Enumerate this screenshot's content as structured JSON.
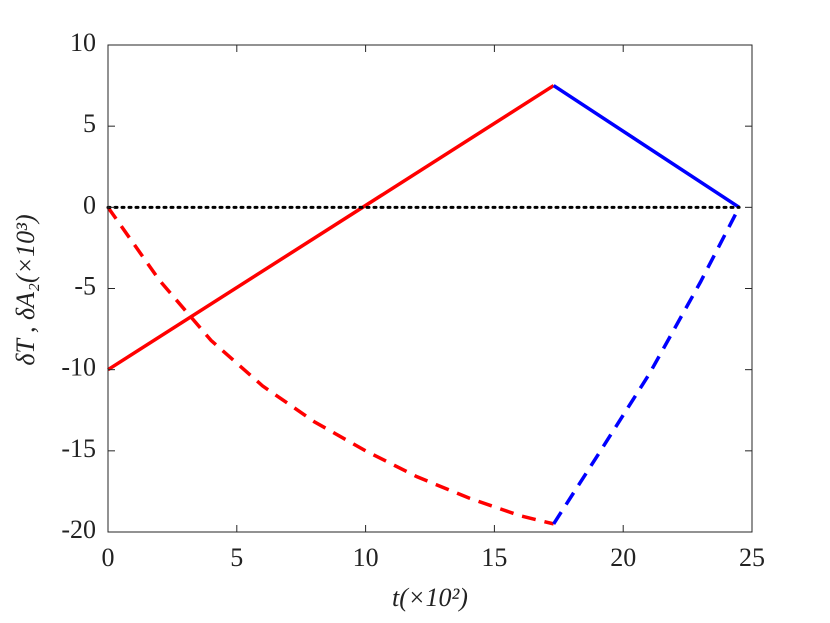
{
  "chart_data": {
    "type": "line",
    "x_label": "t(×10²)",
    "y_label": "δT , δA₂(×10³)",
    "xlim": [
      0,
      25
    ],
    "xticks": [
      0,
      5,
      10,
      15,
      20,
      25
    ],
    "ylim": [
      -20,
      10
    ],
    "yticks": [
      -20,
      -15,
      -10,
      -5,
      0,
      5,
      10
    ],
    "grid": false,
    "series": [
      {
        "color": "#ff0000",
        "style": "solid",
        "x": [
          0,
          17.3
        ],
        "values": [
          -10,
          7.5
        ]
      },
      {
        "color": "#0000ff",
        "style": "solid",
        "x": [
          17.3,
          24.5
        ],
        "values": [
          7.5,
          0
        ]
      },
      {
        "color": "#ff0000",
        "style": "dashed",
        "x": [
          0,
          2,
          4,
          6,
          8,
          10,
          12,
          14,
          16,
          17.3
        ],
        "values": [
          0,
          -4.5,
          -8.2,
          -11,
          -13.2,
          -15,
          -16.6,
          -17.9,
          -19,
          -19.5
        ]
      },
      {
        "color": "#0000ff",
        "style": "dashed",
        "x": [
          17.3,
          19,
          21,
          23,
          24.5
        ],
        "values": [
          -19.5,
          -15.3,
          -10.3,
          -4.6,
          0
        ]
      },
      {
        "color": "#000000",
        "style": "dotted",
        "x": [
          0,
          24.5
        ],
        "values": [
          0,
          0
        ]
      }
    ]
  }
}
